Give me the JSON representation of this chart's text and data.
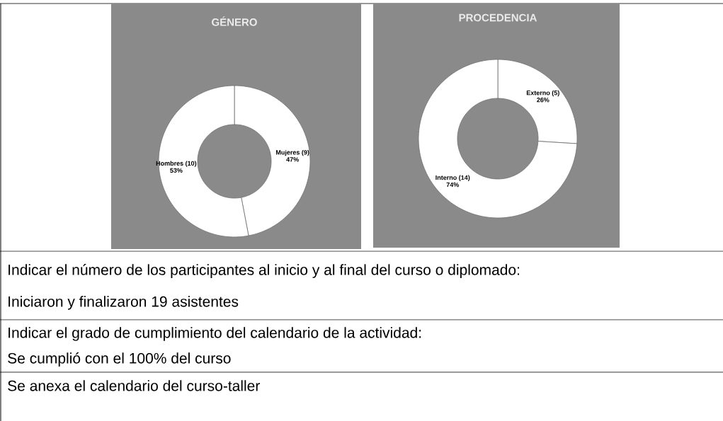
{
  "chart_data": [
    {
      "type": "donut",
      "title": "GÉNERO",
      "categories": [
        "Mujeres (9)",
        "Hombres (10)"
      ],
      "values": [
        47,
        53
      ],
      "value_labels": [
        "47%",
        "53%"
      ],
      "colors": [
        "#ffffff",
        "#ffffff"
      ]
    },
    {
      "type": "donut",
      "title": "PROCEDENCIA",
      "categories": [
        "Externo (5)",
        "Interno (14)"
      ],
      "values": [
        26,
        74
      ],
      "value_labels": [
        "26%",
        "74%"
      ],
      "colors": [
        "#ffffff",
        "#ffffff"
      ]
    },
    {
      "type": "other",
      "annotations": [
        "Indicar el número de los participantes al inicio y al final del curso o diplomado:",
        "Iniciaron y finalizaron 19 asistentes",
        "Indicar el grado de cumplimiento del calendario de la actividad:",
        "Se cumplió con el 100% del curso",
        "Se anexa el calendario del curso-taller"
      ]
    }
  ]
}
